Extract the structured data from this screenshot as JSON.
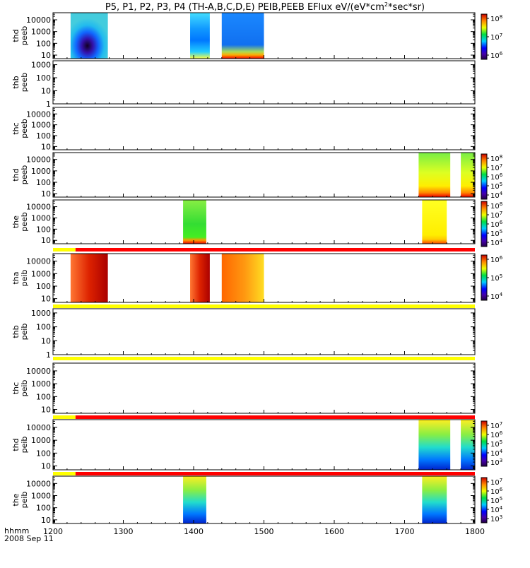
{
  "title": "P5, P1, P2, P3, P4 (TH-A,B,C,D,E) PEIB,PEEB EFlux eV/(eV*cm",
  "title_sup": "2",
  "title_end": "*sec*sr)",
  "footer": {
    "left_label": "hhmm",
    "date": "2008 Sep 11"
  },
  "colors": {
    "bar_yellow": "#ffff00",
    "bar_red": "#ff0000",
    "frame": "#000000"
  },
  "chart_data": {
    "type": "heatmap",
    "x_axis": {
      "range": [
        1200,
        1800
      ],
      "ticks": [
        "1200",
        "1300",
        "1400",
        "1500",
        "1600",
        "1700",
        "1800"
      ]
    },
    "y_scale": "log",
    "panels": [
      {
        "label1": "thd",
        "label2": "peeb",
        "ylim": [
          5,
          40000
        ],
        "yticks": [
          "10",
          "100",
          "1000",
          "10000"
        ],
        "colorbar": {
          "min": 1000000,
          "max": 100000000,
          "labels": [
            "10",
            "10",
            "10"
          ],
          "exps": [
            "8",
            "7",
            "6"
          ]
        },
        "blocks": [
          [
            1225,
            1278,
            "core"
          ],
          [
            1395,
            1423,
            "mix"
          ],
          [
            1440,
            1500,
            "blue"
          ]
        ],
        "bars": []
      },
      {
        "label1": "thb",
        "label2": "peeb",
        "ylim": [
          1,
          2000
        ],
        "yticks": [
          "1",
          "10",
          "100",
          "1000"
        ],
        "colorbar": null,
        "blocks": [],
        "bars": []
      },
      {
        "label1": "thc",
        "label2": "peeb",
        "ylim": [
          5,
          40000
        ],
        "yticks": [
          "10",
          "100",
          "1000",
          "10000"
        ],
        "colorbar": null,
        "blocks": [],
        "bars": []
      },
      {
        "label1": "thd",
        "label2": "peeb",
        "ylim": [
          5,
          40000
        ],
        "yticks": [
          "10",
          "100",
          "1000",
          "10000"
        ],
        "colorbar": {
          "min": 10000,
          "max": 100000000,
          "labels": [
            "10",
            "10",
            "10",
            "10",
            "10"
          ],
          "exps": [
            "8",
            "7",
            "6",
            "5",
            "4"
          ]
        },
        "blocks": [
          [
            1720,
            1765,
            "yg"
          ],
          [
            1780,
            1800,
            "yg"
          ]
        ],
        "bars": []
      },
      {
        "label1": "the",
        "label2": "peeb",
        "ylim": [
          5,
          40000
        ],
        "yticks": [
          "10",
          "100",
          "1000",
          "10000"
        ],
        "colorbar": {
          "min": 10000,
          "max": 100000000,
          "labels": [
            "10",
            "10",
            "10",
            "10",
            "10"
          ],
          "exps": [
            "8",
            "7",
            "6",
            "5",
            "4"
          ]
        },
        "blocks": [
          [
            1385,
            1418,
            "green"
          ],
          [
            1725,
            1760,
            "yellow"
          ]
        ],
        "bars": []
      },
      {
        "label1": "tha",
        "label2": "peib",
        "ylim": [
          5,
          40000
        ],
        "yticks": [
          "10",
          "100",
          "1000",
          "10000"
        ],
        "colorbar": {
          "min": 1000,
          "max": 10000000,
          "labels": [
            "10",
            "10",
            "10"
          ],
          "exps": [
            "6",
            "5",
            "4"
          ]
        },
        "blocks": [
          [
            1225,
            1278,
            "red"
          ],
          [
            1395,
            1423,
            "red"
          ],
          [
            1440,
            1500,
            "orange"
          ]
        ],
        "bars": [
          {
            "pos": "top",
            "segments": [
              [
                1200,
                1232,
                "yellow"
              ],
              [
                1232,
                1800,
                "red"
              ]
            ]
          },
          {
            "pos": "bottom",
            "segments": [
              [
                1200,
                1800,
                "yellow"
              ]
            ]
          }
        ]
      },
      {
        "label1": "thb",
        "label2": "peib",
        "ylim": [
          1,
          2000
        ],
        "yticks": [
          "1",
          "10",
          "100",
          "1000"
        ],
        "colorbar": null,
        "blocks": [],
        "bars": [
          {
            "pos": "bottom",
            "segments": [
              [
                1200,
                1800,
                "yellow"
              ]
            ]
          }
        ]
      },
      {
        "label1": "thc",
        "label2": "peib",
        "ylim": [
          5,
          40000
        ],
        "yticks": [
          "10",
          "100",
          "1000",
          "10000"
        ],
        "colorbar": null,
        "blocks": [],
        "bars": [
          {
            "pos": "bottom",
            "segments": [
              [
                1200,
                1232,
                "yellow"
              ],
              [
                1232,
                1800,
                "red"
              ]
            ]
          }
        ]
      },
      {
        "label1": "thd",
        "label2": "peib",
        "ylim": [
          5,
          40000
        ],
        "yticks": [
          "10",
          "100",
          "1000",
          "10000"
        ],
        "colorbar": {
          "min": 1000,
          "max": 10000000,
          "labels": [
            "10",
            "10",
            "10",
            "10",
            "10"
          ],
          "exps": [
            "7",
            "6",
            "5",
            "4",
            "3"
          ]
        },
        "blocks": [
          [
            1720,
            1765,
            "cool"
          ],
          [
            1780,
            1800,
            "cool"
          ]
        ],
        "bars": [
          {
            "pos": "bottom",
            "segments": [
              [
                1200,
                1232,
                "yellow"
              ],
              [
                1232,
                1800,
                "red"
              ]
            ]
          }
        ]
      },
      {
        "label1": "the",
        "label2": "peib",
        "ylim": [
          5,
          40000
        ],
        "yticks": [
          "10",
          "100",
          "1000",
          "10000"
        ],
        "colorbar": {
          "min": 1000,
          "max": 10000000,
          "labels": [
            "10",
            "10",
            "10",
            "10",
            "10"
          ],
          "exps": [
            "7",
            "6",
            "5",
            "4",
            "3"
          ]
        },
        "blocks": [
          [
            1385,
            1418,
            "cool"
          ],
          [
            1725,
            1760,
            "cool"
          ]
        ],
        "bars": []
      }
    ]
  }
}
